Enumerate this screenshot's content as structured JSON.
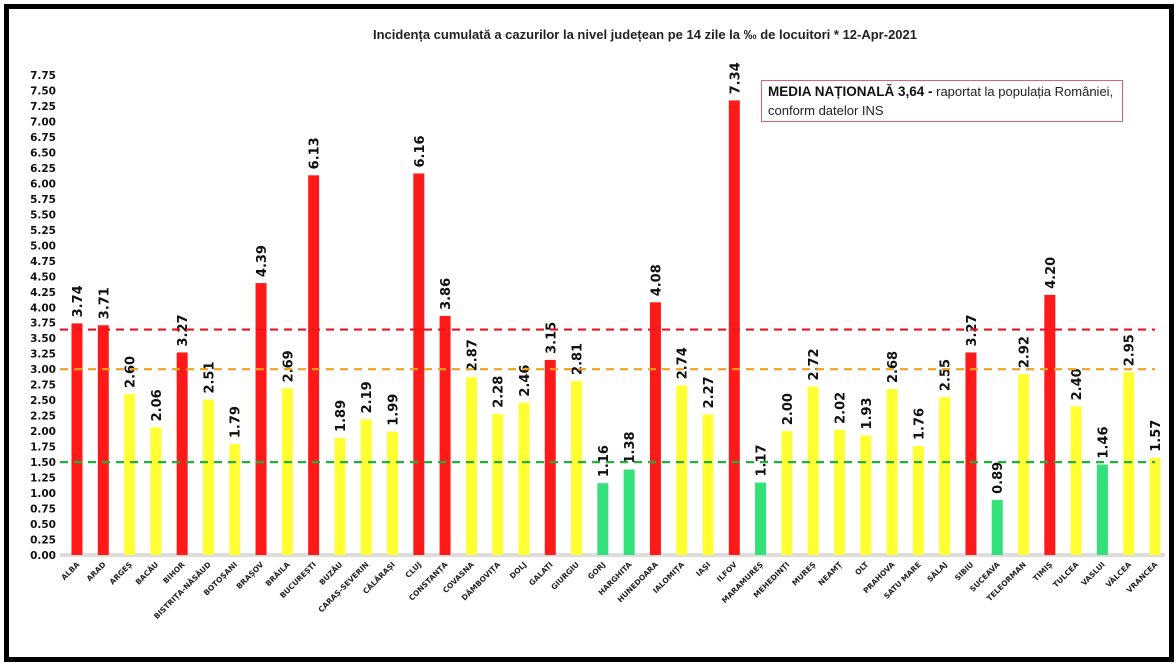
{
  "chart_data": {
    "type": "bar",
    "title": "Incidența cumulată a cazurilor la nivel județean pe 14 zile la ‰ de locuitori *   12-Apr-2021",
    "xlabel": "",
    "ylabel": "",
    "ylim": [
      0,
      7.75
    ],
    "ytick_step": 0.25,
    "grid": false,
    "categories": [
      "ALBA",
      "ARAD",
      "ARGEȘ",
      "BACĂU",
      "BIHOR",
      "BISTRIȚA-NĂSĂUD",
      "BOTOȘANI",
      "BRAȘOV",
      "BRĂILA",
      "BUCUREȘTI",
      "BUZĂU",
      "CARAȘ-SEVERIN",
      "CĂLĂRAȘI",
      "CLUJ",
      "CONSTANȚA",
      "COVASNA",
      "DÂMBOVIȚA",
      "DOLJ",
      "GALAȚI",
      "GIURGIU",
      "GORJ",
      "HARGHITA",
      "HUNEDOARA",
      "IALOMIȚA",
      "IAȘI",
      "ILFOV",
      "MARAMUREȘ",
      "MEHEDINȚI",
      "MUREȘ",
      "NEAMȚ",
      "OLT",
      "PRAHOVA",
      "SATU MARE",
      "SĂLAJ",
      "SIBIU",
      "SUCEAVA",
      "TELEORMAN",
      "TIMIȘ",
      "TULCEA",
      "VASLUI",
      "VÂLCEA",
      "VRANCEA"
    ],
    "values": [
      3.74,
      3.71,
      2.6,
      2.06,
      3.27,
      2.51,
      1.79,
      4.39,
      2.69,
      6.13,
      1.89,
      2.19,
      1.99,
      6.16,
      3.86,
      2.87,
      2.28,
      2.46,
      3.15,
      2.81,
      1.16,
      1.38,
      4.08,
      2.74,
      2.27,
      7.34,
      1.17,
      2.0,
      2.72,
      2.02,
      1.93,
      2.68,
      1.76,
      2.55,
      3.27,
      0.89,
      2.92,
      4.2,
      2.4,
      1.46,
      2.95,
      1.57
    ],
    "reference_lines": [
      {
        "value": 3.64,
        "color": "#e8141e",
        "style": "dashed"
      },
      {
        "value": 3.0,
        "color": "#f0a020",
        "style": "dashed"
      },
      {
        "value": 1.5,
        "color": "#20b040",
        "style": "dashed"
      }
    ],
    "colors": {
      "high": "#ff1a1a",
      "medium": "#ffff33",
      "low": "#33e07a"
    },
    "annotation": {
      "bold": "MEDIA NAȚIONALĂ  3,64 -",
      "text": " raportat la populația României, conform datelor INS"
    }
  }
}
